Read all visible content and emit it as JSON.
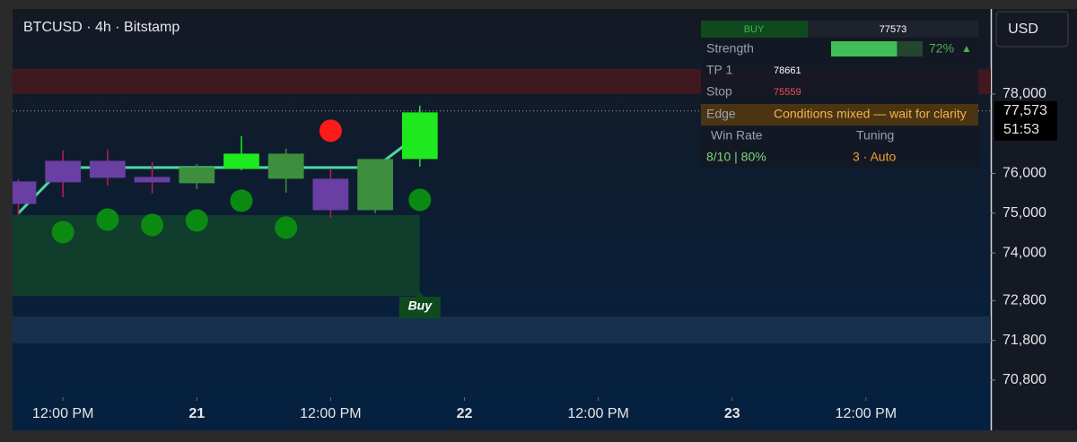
{
  "header": {
    "title": "BTCUSD · 4h · Bitstamp",
    "currency": "USD"
  },
  "chart_data": {
    "type": "candlestick",
    "x": [
      0,
      1,
      2,
      3,
      4,
      5,
      6,
      7,
      8,
      9
    ],
    "open": [
      75788,
      76307,
      76307,
      75901,
      75765,
      76126,
      75878,
      75856,
      75088,
      76375
    ],
    "high": [
      75850,
      76578,
      76600,
      76284,
      76239,
      76939,
      76623,
      76126,
      76352,
      77707
    ],
    "low": [
      74950,
      75404,
      75697,
      75494,
      75607,
      76081,
      75517,
      74885,
      74998,
      76172
    ],
    "close": [
      75246,
      75788,
      75901,
      75788,
      76149,
      76488,
      76488,
      75088,
      76352,
      77526
    ],
    "colors": [
      "#6a3fa3",
      "#6a3fa3",
      "#6a3fa3",
      "#6a3fa3",
      "#3d8f3d",
      "#1ee81e",
      "#3d8f3d",
      "#6a3fa3",
      "#3d8f3d",
      "#1ee81e"
    ],
    "trail": {
      "color": "#4fd8a0",
      "values": [
        75000,
        76149,
        76149,
        76149,
        76149,
        76149,
        76149,
        76149,
        76149,
        77000
      ]
    },
    "signals_below": {
      "color": "#0b8a12",
      "values": [
        null,
        74524,
        74840,
        74704,
        74817,
        75314,
        74636,
        null,
        null,
        75336
      ]
    },
    "signals_above": {
      "color": "#ff1a1a",
      "values": [
        null,
        null,
        null,
        null,
        null,
        null,
        null,
        77075,
        null,
        null
      ]
    },
    "zones": [
      {
        "from": 78000,
        "to": 78632,
        "color": "#3f1820"
      },
      {
        "from": 72921,
        "to": 74953,
        "color": "#103d2c"
      },
      {
        "from": 71725,
        "to": 72402,
        "color": "#17304d"
      }
    ],
    "last_price": {
      "value": 77573,
      "label": "77,573",
      "countdown": "51:53"
    },
    "annotation": "Buy",
    "xlim": [
      -0.13,
      21.8
    ],
    "xticks": [
      {
        "value": 1,
        "label": "12:00 PM"
      },
      {
        "value": 4,
        "label": "21"
      },
      {
        "value": 7,
        "label": "12:00 PM"
      },
      {
        "value": 10,
        "label": "22"
      },
      {
        "value": 13,
        "label": "12:00 PM"
      },
      {
        "value": 16,
        "label": "23"
      },
      {
        "value": 19,
        "label": "12:00 PM"
      }
    ],
    "ylim": [
      70370,
      80140
    ],
    "yticks": [
      {
        "value": 78000,
        "label": "78,000"
      },
      {
        "value": 76000,
        "label": "76,000"
      },
      {
        "value": 75000,
        "label": "75,000"
      },
      {
        "value": 74000,
        "label": "74,000"
      },
      {
        "value": 72800,
        "label": "72,800"
      },
      {
        "value": 71800,
        "label": "71,800"
      },
      {
        "value": 70800,
        "label": "70,800"
      }
    ]
  },
  "panel": {
    "signal": "BUY",
    "price": 77573,
    "strength_label": "Strength",
    "strength": 72,
    "strength_text": "72%",
    "strength_arrow": "▲",
    "tp_label": "TP 1",
    "tp": 78661,
    "stop_label": "Stop",
    "stop": 75559,
    "edge_label": "Edge",
    "edge": "Conditions mixed — wait for clarity",
    "win_rate_label": "Win Rate",
    "tuning_label": "Tuning",
    "win_rate": "8/10 | 80%",
    "tuning": "3 · Auto"
  }
}
